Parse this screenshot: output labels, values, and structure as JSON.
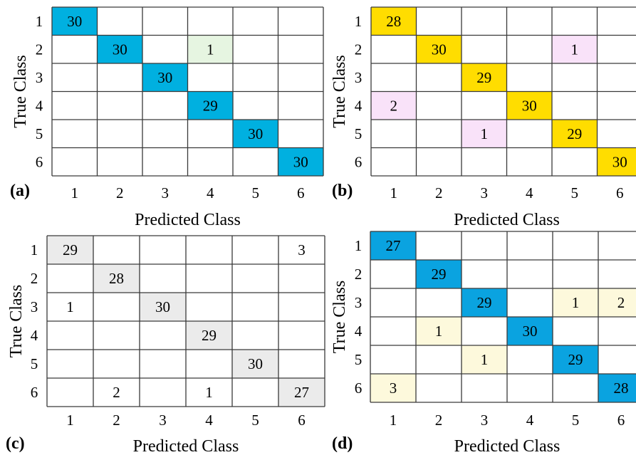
{
  "chart_data": [
    {
      "type": "heatmap",
      "panel_label": "(a)",
      "xlabel": "Predicted Class",
      "ylabel": "True Class",
      "x_ticks": [
        "1",
        "2",
        "3",
        "4",
        "5",
        "6"
      ],
      "y_ticks": [
        "1",
        "2",
        "3",
        "4",
        "5",
        "6"
      ],
      "diag_color": "#00b0e0",
      "offdiag_color": "#e6f5e1",
      "matrix": [
        [
          30,
          0,
          0,
          0,
          0,
          0
        ],
        [
          0,
          30,
          0,
          1,
          0,
          0
        ],
        [
          0,
          0,
          30,
          0,
          0,
          0
        ],
        [
          0,
          0,
          0,
          29,
          0,
          0
        ],
        [
          0,
          0,
          0,
          0,
          30,
          0
        ],
        [
          0,
          0,
          0,
          0,
          0,
          30
        ]
      ]
    },
    {
      "type": "heatmap",
      "panel_label": "(b)",
      "xlabel": "Predicted Class",
      "ylabel": "True Class",
      "x_ticks": [
        "1",
        "2",
        "3",
        "4",
        "5",
        "6"
      ],
      "y_ticks": [
        "1",
        "2",
        "3",
        "4",
        "5",
        "6"
      ],
      "diag_color": "#ffdd00",
      "offdiag_color": "#f9e2f9",
      "matrix": [
        [
          28,
          0,
          0,
          0,
          0,
          0
        ],
        [
          0,
          30,
          0,
          0,
          1,
          0
        ],
        [
          0,
          0,
          29,
          0,
          0,
          0
        ],
        [
          2,
          0,
          0,
          30,
          0,
          0
        ],
        [
          0,
          0,
          1,
          0,
          29,
          0
        ],
        [
          0,
          0,
          0,
          0,
          0,
          30
        ]
      ]
    },
    {
      "type": "heatmap",
      "panel_label": "(c)",
      "xlabel": "Predicted Class",
      "ylabel": "True Class",
      "x_ticks": [
        "1",
        "2",
        "3",
        "4",
        "5",
        "6"
      ],
      "y_ticks": [
        "1",
        "2",
        "3",
        "4",
        "5",
        "6"
      ],
      "diag_color": "#ebebeb",
      "offdiag_color": "#ffffff",
      "matrix": [
        [
          29,
          0,
          0,
          0,
          0,
          3
        ],
        [
          0,
          28,
          0,
          0,
          0,
          0
        ],
        [
          1,
          0,
          30,
          0,
          0,
          0
        ],
        [
          0,
          0,
          0,
          29,
          0,
          0
        ],
        [
          0,
          0,
          0,
          0,
          30,
          0
        ],
        [
          0,
          2,
          0,
          1,
          0,
          27
        ]
      ]
    },
    {
      "type": "heatmap",
      "panel_label": "(d)",
      "xlabel": "Predicted Class",
      "ylabel": "True Class",
      "x_ticks": [
        "1",
        "2",
        "3",
        "4",
        "5",
        "6"
      ],
      "y_ticks": [
        "1",
        "2",
        "3",
        "4",
        "5",
        "6"
      ],
      "diag_color": "#0aa3e0",
      "offdiag_color": "#fdf9dc",
      "matrix": [
        [
          27,
          0,
          0,
          0,
          0,
          0
        ],
        [
          0,
          29,
          0,
          0,
          0,
          0
        ],
        [
          0,
          0,
          29,
          0,
          1,
          2
        ],
        [
          0,
          1,
          0,
          30,
          0,
          0
        ],
        [
          0,
          0,
          1,
          0,
          29,
          0
        ],
        [
          3,
          0,
          0,
          0,
          0,
          28
        ]
      ]
    }
  ]
}
